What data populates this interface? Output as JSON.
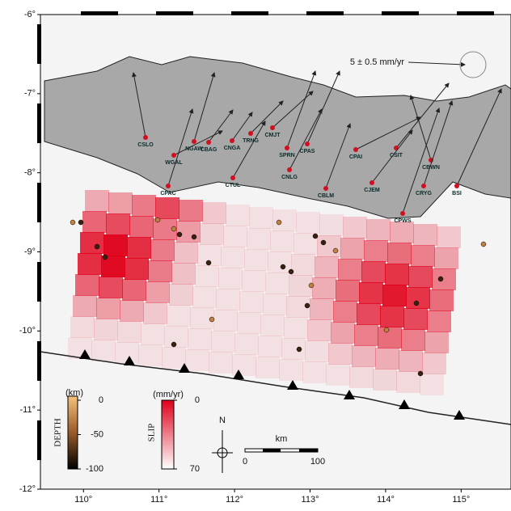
{
  "map": {
    "xlim": [
      109.43,
      115.66
    ],
    "ylim": [
      -6,
      -12
    ],
    "xticks": [
      {
        "value": 110,
        "label": "110°"
      },
      {
        "value": 111,
        "label": "111°"
      },
      {
        "value": 112,
        "label": "112°"
      },
      {
        "value": 113,
        "label": "113°"
      },
      {
        "value": 114,
        "label": "114°"
      },
      {
        "value": 115,
        "label": "115°"
      }
    ],
    "yticks": [
      {
        "value": -6,
        "label": "-6°"
      },
      {
        "value": -7,
        "label": "-7°"
      },
      {
        "value": -8,
        "label": "-8°"
      },
      {
        "value": -9,
        "label": "-9°"
      },
      {
        "value": -10,
        "label": "-10°"
      },
      {
        "value": -11,
        "label": "-11°"
      },
      {
        "value": -12,
        "label": "-12°"
      }
    ],
    "velocity_label": "5 ± 0.5 mm/yr",
    "stations": [
      "CSLO",
      "NGAW",
      "CBAG",
      "CNGA",
      "TRNG",
      "CMJT",
      "WGAL",
      "CPAS",
      "SPRN",
      "CNLG",
      "CTUL",
      "CPAC",
      "CPAI",
      "CSIT",
      "CBLM",
      "CJEM",
      "CBWN",
      "CRYG",
      "CPWS",
      "BSI"
    ],
    "depth_scale": {
      "title": "DEPTH",
      "unit": "(km)",
      "ylim": [
        0,
        -100
      ],
      "ticks": [
        0,
        -50,
        -100
      ]
    },
    "slip_scale": {
      "title": "SLIP",
      "unit": "(mm/yr)",
      "ylim": [
        0,
        70
      ],
      "ticks": [
        70,
        0
      ]
    },
    "north": "N",
    "scale_bar": {
      "unit": "km",
      "ticks": [
        0,
        100
      ]
    }
  }
}
